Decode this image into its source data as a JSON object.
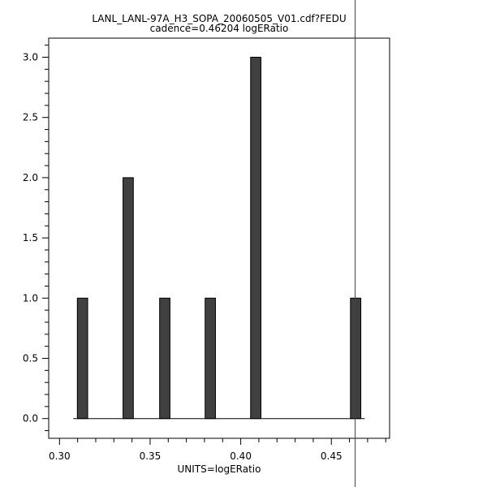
{
  "chart_data": {
    "type": "bar",
    "title": "LANL_LANL-97A_H3_SOPA_20060505_V01.cdf?FEDU",
    "subtitle": "cadence=0.46204 logERatio",
    "xlabel": "UNITS=logERatio",
    "ylabel": "",
    "xlim": [
      0.294,
      0.482
    ],
    "ylim": [
      -0.15,
      3.15
    ],
    "x_ticks": [
      0.3,
      0.35,
      0.4,
      0.45
    ],
    "x_tick_labels": [
      "0.30",
      "0.35",
      "0.40",
      "0.45"
    ],
    "y_ticks": [
      0.0,
      0.5,
      1.0,
      1.5,
      2.0,
      2.5,
      3.0
    ],
    "y_tick_labels": [
      "0.0",
      "0.5",
      "1.0",
      "1.5",
      "2.0",
      "2.5",
      "3.0"
    ],
    "bin_width": 0.0057,
    "x": [
      0.3127,
      0.3379,
      0.3581,
      0.3832,
      0.4083,
      0.4634
    ],
    "values": [
      1,
      2,
      1,
      1,
      3,
      1
    ],
    "baseline_range": [
      0.3076,
      0.4684
    ],
    "marker_line_x": 0.4631,
    "grid": false,
    "bar_color": "#404040"
  }
}
